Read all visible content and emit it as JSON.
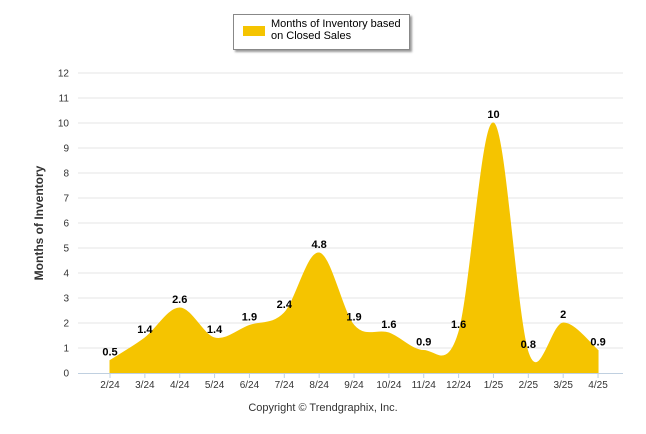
{
  "chart_data": {
    "type": "area",
    "title": "",
    "xlabel": "",
    "ylabel": "Months of Inventory",
    "ylim": [
      0,
      12
    ],
    "yticks": [
      0,
      1,
      2,
      3,
      4,
      5,
      6,
      7,
      8,
      9,
      10,
      11,
      12
    ],
    "grid": true,
    "legend_placement": "top-center",
    "categories": [
      "2/24",
      "3/24",
      "4/24",
      "5/24",
      "6/24",
      "7/24",
      "8/24",
      "9/24",
      "10/24",
      "11/24",
      "12/24",
      "1/25",
      "2/25",
      "3/25",
      "4/25"
    ],
    "series": [
      {
        "name": "Months of Inventory based on Closed Sales",
        "values": [
          0.5,
          1.4,
          2.6,
          1.4,
          1.9,
          2.4,
          4.8,
          1.9,
          1.6,
          0.9,
          1.6,
          10,
          0.8,
          2,
          0.9
        ],
        "color": "#f5c400"
      }
    ]
  },
  "legend": {
    "label": "Months of Inventory based on Closed Sales",
    "color": "#f5c400"
  },
  "footer": {
    "credit": "Copyright © Trendgraphix, Inc."
  }
}
